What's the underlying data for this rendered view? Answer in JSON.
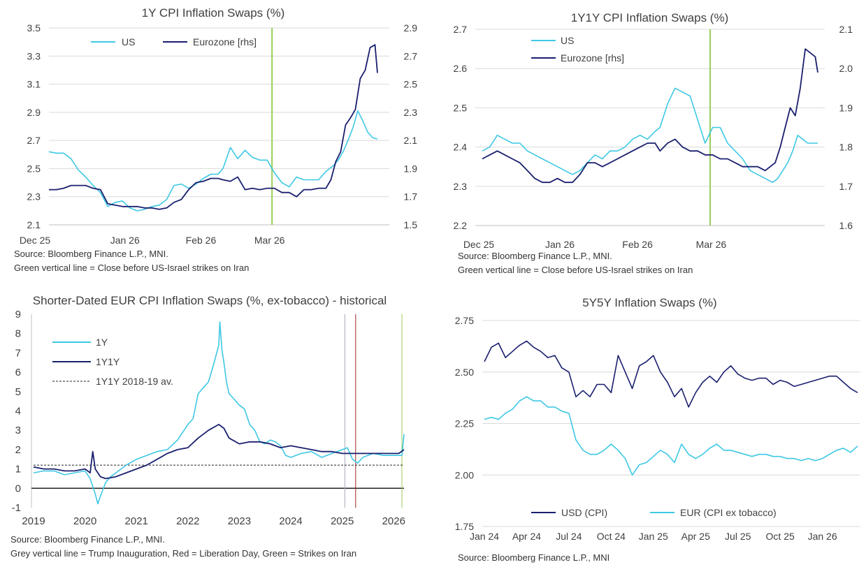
{
  "colors": {
    "us": "#3ec8e4",
    "ez": "#1a1f6e",
    "green": "#9acd5a",
    "grey": "#a9a9b8",
    "red": "#a12222",
    "grid": "#d9d9d9",
    "axis": "#404040"
  },
  "panels": {
    "p1": {
      "title": "1Y CPI Inflation Swaps (%)",
      "notes": [
        "Source: Bloomberg Finance L.P., MNI.",
        "Green vertical line = Close before US-Israel strikes on Iran"
      ],
      "legend": [
        "US",
        "Eurozone [rhs]"
      ]
    },
    "p2": {
      "title": "1Y1Y CPI Inflation Swaps (%)",
      "notes": [
        "Source: Bloomberg Finance L.P., MNI.",
        "Green vertical line = Close before US-Israel strikes on Iran"
      ],
      "legend": [
        "US",
        "Eurozone [rhs]"
      ]
    },
    "p3": {
      "title": "Shorter-Dated EUR CPI Inflation Swaps (%, ex-tobacco) - historical",
      "notes": [
        "Source: Bloomberg Finance L.P., MNI.",
        "Grey vertical line = Trump Inauguration, Red = Liberation Day, Green = Strikes on Iran"
      ],
      "legend": [
        "1Y",
        "1Y1Y",
        "1Y1Y 2018-19 av."
      ]
    },
    "p4": {
      "title": "5Y5Y Inflation Swaps (%)",
      "notes": [
        "Source: Bloomberg Finance L.P., MNI"
      ],
      "legend": [
        "USD (CPI)",
        "EUR (CPI ex tobacco)"
      ]
    }
  },
  "chart_data": [
    {
      "type": "line",
      "title": "1Y CPI Inflation Swaps (%)",
      "x_ticks": [
        "Dec 25",
        "Jan 26",
        "Feb 26",
        "Mar 26"
      ],
      "ylim": [
        2.1,
        3.5
      ],
      "y_ticks": [
        2.1,
        2.3,
        2.5,
        2.7,
        2.9,
        3.1,
        3.3,
        3.5
      ],
      "y2lim": [
        1.5,
        2.9
      ],
      "y2_ticks": [
        1.5,
        1.7,
        1.9,
        2.1,
        2.3,
        2.5,
        2.7,
        2.9
      ],
      "x_unit": "days since Dec 1 2025",
      "vline_day": 91,
      "series": [
        {
          "name": "US",
          "axis": "left",
          "x": [
            0,
            3,
            6,
            9,
            12,
            15,
            18,
            21,
            24,
            27,
            30,
            33,
            36,
            39,
            42,
            45,
            48,
            51,
            54,
            57,
            60,
            63,
            66,
            69,
            71,
            74,
            77,
            80,
            83,
            86,
            89,
            92,
            95,
            98,
            101,
            104,
            107
          ],
          "y": [
            2.62,
            2.61,
            2.61,
            2.57,
            2.49,
            2.44,
            2.38,
            2.33,
            2.23,
            2.26,
            2.27,
            2.22,
            2.2,
            2.21,
            2.23,
            2.24,
            2.28,
            2.38,
            2.39,
            2.36,
            2.39,
            2.43,
            2.46,
            2.46,
            2.5,
            2.65,
            2.57,
            2.63,
            2.58,
            2.56,
            2.56,
            2.47,
            2.4,
            2.37,
            2.44,
            2.42,
            2.42
          ]
        },
        {
          "name": "US (cont.)",
          "axis": "left",
          "x": [
            107,
            110,
            113,
            116,
            118,
            120,
            122,
            124,
            126,
            128,
            130,
            132,
            134
          ],
          "y": [
            2.42,
            2.42,
            2.48,
            2.52,
            2.56,
            2.62,
            2.7,
            2.79,
            2.91,
            2.84,
            2.76,
            2.72,
            2.71
          ]
        },
        {
          "name": "Eurozone [rhs]",
          "axis": "right",
          "x": [
            0,
            3,
            6,
            9,
            12,
            15,
            18,
            21,
            24,
            27,
            30,
            33,
            36,
            39,
            42,
            45,
            48,
            51,
            54,
            57,
            60,
            63,
            66,
            69,
            71,
            74,
            77,
            80,
            83,
            86,
            89,
            92,
            95,
            98,
            101,
            104,
            107,
            110,
            113,
            115,
            117,
            119,
            121,
            123,
            125,
            127,
            129,
            131,
            133,
            134
          ],
          "y": [
            1.75,
            1.75,
            1.76,
            1.78,
            1.78,
            1.78,
            1.76,
            1.75,
            1.65,
            1.64,
            1.63,
            1.63,
            1.63,
            1.62,
            1.62,
            1.61,
            1.62,
            1.66,
            1.68,
            1.75,
            1.8,
            1.81,
            1.83,
            1.83,
            1.82,
            1.81,
            1.84,
            1.75,
            1.76,
            1.75,
            1.76,
            1.76,
            1.73,
            1.73,
            1.7,
            1.75,
            1.75,
            1.76,
            1.76,
            1.82,
            1.95,
            2.02,
            2.21,
            2.26,
            2.32,
            2.54,
            2.6,
            2.76,
            2.78,
            2.58
          ]
        }
      ]
    },
    {
      "type": "line",
      "title": "1Y1Y CPI Inflation Swaps (%)",
      "x_ticks": [
        "Dec 25",
        "Jan 26",
        "Feb 26",
        "Mar 26"
      ],
      "ylim": [
        2.2,
        2.7
      ],
      "y_ticks": [
        2.2,
        2.3,
        2.4,
        2.5,
        2.6,
        2.7
      ],
      "y2lim": [
        1.6,
        2.1
      ],
      "y2_ticks": [
        1.6,
        1.7,
        1.8,
        1.9,
        2.0,
        2.1
      ],
      "x_unit": "days since Dec 1 2025",
      "vline_day": 91,
      "series": [
        {
          "name": "US",
          "axis": "left",
          "x": [
            0,
            3,
            6,
            9,
            12,
            15,
            18,
            21,
            24,
            27,
            30,
            33,
            36,
            39,
            42,
            45,
            48,
            51,
            54,
            57,
            60,
            63,
            66,
            69,
            71,
            74,
            77,
            80,
            83,
            86,
            89,
            92,
            95,
            98,
            101,
            104,
            107,
            110,
            113,
            116,
            118,
            120,
            122,
            124,
            126,
            128,
            130,
            132,
            134
          ],
          "y": [
            2.39,
            2.4,
            2.43,
            2.42,
            2.41,
            2.41,
            2.39,
            2.38,
            2.37,
            2.36,
            2.35,
            2.34,
            2.33,
            2.34,
            2.36,
            2.38,
            2.37,
            2.39,
            2.39,
            2.4,
            2.42,
            2.43,
            2.42,
            2.44,
            2.45,
            2.51,
            2.55,
            2.54,
            2.53,
            2.47,
            2.41,
            2.45,
            2.45,
            2.41,
            2.39,
            2.37,
            2.34,
            2.33,
            2.32,
            2.31,
            2.32,
            2.34,
            2.36,
            2.39,
            2.43,
            2.42,
            2.41,
            2.41,
            2.41
          ]
        },
        {
          "name": "Eurozone [rhs]",
          "axis": "right",
          "x": [
            0,
            3,
            6,
            9,
            12,
            15,
            18,
            21,
            24,
            27,
            30,
            33,
            36,
            39,
            42,
            45,
            48,
            51,
            54,
            57,
            60,
            63,
            66,
            69,
            71,
            74,
            77,
            80,
            83,
            86,
            89,
            92,
            95,
            98,
            101,
            104,
            107,
            110,
            113,
            115,
            117,
            119,
            121,
            123,
            125,
            127,
            129,
            131,
            133,
            134
          ],
          "y": [
            1.77,
            1.78,
            1.79,
            1.78,
            1.77,
            1.76,
            1.74,
            1.72,
            1.71,
            1.71,
            1.72,
            1.71,
            1.71,
            1.73,
            1.76,
            1.76,
            1.75,
            1.76,
            1.77,
            1.78,
            1.79,
            1.8,
            1.81,
            1.81,
            1.79,
            1.81,
            1.82,
            1.8,
            1.79,
            1.79,
            1.78,
            1.78,
            1.77,
            1.77,
            1.76,
            1.75,
            1.75,
            1.75,
            1.74,
            1.75,
            1.76,
            1.8,
            1.85,
            1.9,
            1.88,
            1.95,
            2.05,
            2.04,
            2.03,
            1.99
          ]
        }
      ]
    },
    {
      "type": "line",
      "title": "Shorter-Dated EUR CPI Inflation Swaps (%, ex-tobacco) - historical",
      "x_ticks": [
        "2019",
        "2020",
        "2021",
        "2022",
        "2023",
        "2024",
        "2025",
        "2026"
      ],
      "ylim": [
        -1,
        9
      ],
      "y_ticks": [
        -1,
        0,
        1,
        2,
        3,
        4,
        5,
        6,
        7,
        8,
        9
      ],
      "vlines": {
        "grey": 2025.05,
        "red": 2025.26,
        "green": 2026.16
      },
      "series": [
        {
          "name": "1Y",
          "x": [
            2019.0,
            2019.2,
            2019.4,
            2019.6,
            2019.8,
            2020.0,
            2020.1,
            2020.2,
            2020.25,
            2020.3,
            2020.4,
            2020.5,
            2020.6,
            2020.8,
            2021.0,
            2021.2,
            2021.4,
            2021.6,
            2021.8,
            2022.0,
            2022.1,
            2022.2,
            2022.3,
            2022.4,
            2022.5,
            2022.6,
            2022.62,
            2022.66,
            2022.7,
            2022.75,
            2022.8,
            2022.9,
            2023.0,
            2023.1,
            2023.2,
            2023.3,
            2023.4,
            2023.5,
            2023.6,
            2023.7,
            2023.8,
            2023.9,
            2024.0,
            2024.2,
            2024.4,
            2024.6,
            2024.8,
            2025.0,
            2025.1,
            2025.2,
            2025.3,
            2025.4,
            2025.6,
            2025.8,
            2026.0,
            2026.1,
            2026.16,
            2026.2
          ],
          "y": [
            0.8,
            0.9,
            0.9,
            0.7,
            0.8,
            0.9,
            0.5,
            -0.3,
            -0.8,
            -0.4,
            0.3,
            0.6,
            0.8,
            1.2,
            1.5,
            1.7,
            1.9,
            2.0,
            2.5,
            3.3,
            3.6,
            4.9,
            5.2,
            5.5,
            6.4,
            7.4,
            8.6,
            7.2,
            6.5,
            5.5,
            4.9,
            4.6,
            4.3,
            4.1,
            3.3,
            3.0,
            2.4,
            2.3,
            2.5,
            2.4,
            2.2,
            1.7,
            1.6,
            1.8,
            1.9,
            1.6,
            1.8,
            2.0,
            2.1,
            1.5,
            1.3,
            1.6,
            1.8,
            1.7,
            1.7,
            1.7,
            1.7,
            2.8
          ]
        },
        {
          "name": "1Y1Y",
          "x": [
            2019.0,
            2019.2,
            2019.4,
            2019.6,
            2019.8,
            2020.0,
            2020.1,
            2020.15,
            2020.2,
            2020.3,
            2020.4,
            2020.6,
            2020.8,
            2021.0,
            2021.2,
            2021.4,
            2021.6,
            2021.8,
            2022.0,
            2022.2,
            2022.4,
            2022.6,
            2022.7,
            2022.8,
            2023.0,
            2023.2,
            2023.4,
            2023.6,
            2023.8,
            2024.0,
            2024.2,
            2024.4,
            2024.6,
            2024.8,
            2025.0,
            2025.2,
            2025.4,
            2025.6,
            2025.8,
            2026.0,
            2026.1,
            2026.2
          ],
          "y": [
            1.1,
            1.0,
            1.0,
            0.9,
            0.9,
            1.0,
            0.8,
            1.9,
            1.0,
            0.6,
            0.5,
            0.6,
            0.8,
            1.0,
            1.2,
            1.5,
            1.8,
            2.0,
            2.1,
            2.6,
            3.0,
            3.3,
            3.1,
            2.6,
            2.3,
            2.4,
            2.4,
            2.3,
            2.1,
            2.2,
            2.1,
            2.0,
            1.9,
            1.9,
            1.8,
            1.8,
            1.8,
            1.8,
            1.8,
            1.8,
            1.8,
            2.0
          ]
        },
        {
          "name": "1Y1Y 2018-19 av.",
          "x": [
            2019.0,
            2026.2
          ],
          "y": [
            1.2,
            1.2
          ]
        }
      ]
    },
    {
      "type": "line",
      "title": "5Y5Y Inflation Swaps (%)",
      "x_ticks": [
        "Jan 24",
        "Apr 24",
        "Jul 24",
        "Oct 24",
        "Jan 25",
        "Apr 25",
        "Jul 25",
        "Oct 25",
        "Jan 26"
      ],
      "ylim": [
        1.75,
        2.75
      ],
      "y_ticks": [
        1.75,
        2.0,
        2.25,
        2.5,
        2.75
      ],
      "x_unit": "months since Jan 2024",
      "series": [
        {
          "name": "USD (CPI)",
          "x": [
            0,
            0.5,
            1,
            1.5,
            2,
            2.5,
            3,
            3.5,
            4,
            4.5,
            5,
            5.5,
            6,
            6.5,
            7,
            7.5,
            8,
            8.5,
            9,
            9.5,
            10,
            10.5,
            11,
            11.5,
            12,
            12.5,
            13,
            13.5,
            14,
            14.5,
            15,
            15.5,
            16,
            16.5,
            17,
            17.5,
            18,
            18.5,
            19,
            19.5,
            20,
            20.5,
            21,
            21.5,
            22,
            22.5,
            23,
            23.5,
            24,
            24.5,
            25,
            25.5,
            26,
            26.5
          ],
          "y": [
            2.55,
            2.62,
            2.64,
            2.57,
            2.6,
            2.63,
            2.65,
            2.62,
            2.6,
            2.57,
            2.58,
            2.52,
            2.5,
            2.38,
            2.41,
            2.38,
            2.44,
            2.44,
            2.4,
            2.58,
            2.5,
            2.42,
            2.53,
            2.55,
            2.58,
            2.5,
            2.45,
            2.38,
            2.42,
            2.33,
            2.4,
            2.45,
            2.48,
            2.45,
            2.5,
            2.53,
            2.49,
            2.47,
            2.46,
            2.47,
            2.47,
            2.44,
            2.46,
            2.45,
            2.43,
            2.44,
            2.45,
            2.46,
            2.47,
            2.48,
            2.48,
            2.45,
            2.42,
            2.4
          ]
        },
        {
          "name": "EUR (CPI ex tobacco)",
          "x": [
            0,
            0.5,
            1,
            1.5,
            2,
            2.5,
            3,
            3.5,
            4,
            4.5,
            5,
            5.5,
            6,
            6.5,
            7,
            7.5,
            8,
            8.5,
            9,
            9.5,
            10,
            10.5,
            11,
            11.5,
            12,
            12.5,
            13,
            13.5,
            14,
            14.5,
            15,
            15.5,
            16,
            16.5,
            17,
            17.5,
            18,
            18.5,
            19,
            19.5,
            20,
            20.5,
            21,
            21.5,
            22,
            22.5,
            23,
            23.5,
            24,
            24.5,
            25,
            25.5,
            26,
            26.5
          ],
          "y": [
            2.27,
            2.28,
            2.27,
            2.3,
            2.32,
            2.36,
            2.38,
            2.36,
            2.36,
            2.33,
            2.33,
            2.31,
            2.3,
            2.17,
            2.12,
            2.1,
            2.1,
            2.12,
            2.15,
            2.12,
            2.08,
            2.0,
            2.05,
            2.06,
            2.09,
            2.12,
            2.1,
            2.06,
            2.15,
            2.1,
            2.08,
            2.1,
            2.13,
            2.15,
            2.12,
            2.12,
            2.11,
            2.1,
            2.09,
            2.1,
            2.1,
            2.09,
            2.09,
            2.08,
            2.08,
            2.07,
            2.08,
            2.07,
            2.08,
            2.1,
            2.12,
            2.13,
            2.11,
            2.14
          ]
        }
      ]
    }
  ]
}
